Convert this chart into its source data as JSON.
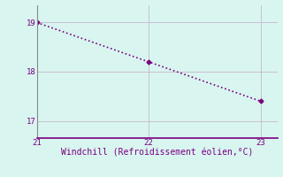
{
  "x": [
    21,
    22,
    23
  ],
  "y": [
    19.0,
    18.2,
    17.4
  ],
  "line_color": "#7b0080",
  "marker_style": "D",
  "marker_size": 2.5,
  "line_style": ":",
  "line_width": 1.2,
  "background_color": "#d8f5f0",
  "grid_color": "#c8b8c8",
  "xlabel": "Windchill (Refroidissement éolien,°C)",
  "xlabel_color": "#7b0080",
  "xlabel_fontsize": 7,
  "tick_color": "#7b0080",
  "tick_fontsize": 6.5,
  "xlim": [
    21.0,
    23.15
  ],
  "ylim": [
    16.65,
    19.35
  ],
  "xticks": [
    21,
    22,
    23
  ],
  "yticks": [
    17,
    18,
    19
  ],
  "grid_linewidth": 0.6,
  "spine_color": "#7b0080",
  "left_spine_color": "#888888"
}
